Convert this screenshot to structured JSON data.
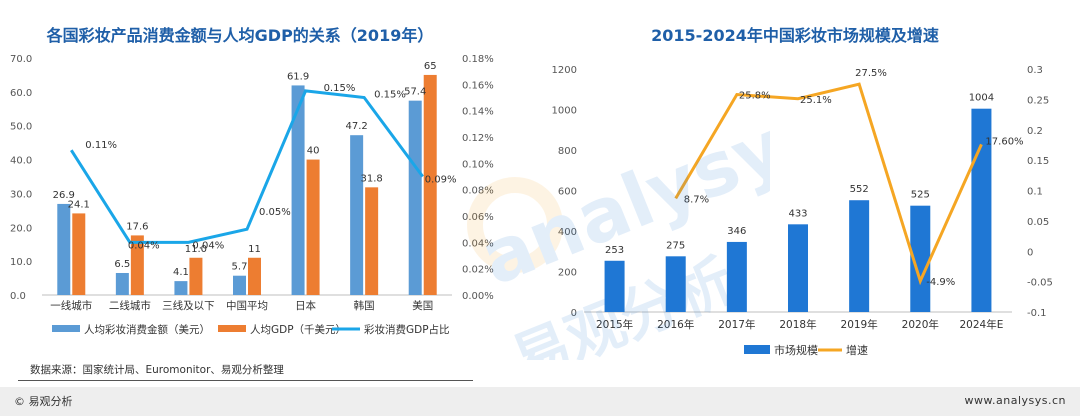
{
  "left_chart": {
    "title": "各国彩妆产品消费金额与人均GDP的关系（2019年）",
    "legend": [
      "人均彩妆消费金额（美元）",
      "人均GDP（千美元）",
      "彩妆消费GDP占比"
    ],
    "y_left_ticks": [
      "0.0",
      "10.0",
      "20.0",
      "30.0",
      "40.0",
      "50.0",
      "60.0",
      "70.0"
    ],
    "y_right_ticks": [
      "0.00%",
      "0.02%",
      "0.04%",
      "0.06%",
      "0.08%",
      "0.10%",
      "0.12%",
      "0.14%",
      "0.16%",
      "0.18%"
    ],
    "bar_labels_1": [
      "26.9",
      "6.5",
      "4.1",
      "5.7",
      "61.9",
      "47.2",
      "57.4"
    ],
    "bar_labels_2": [
      "24.1",
      "17.6",
      "11.0",
      "11",
      "40",
      "31.8",
      "65"
    ],
    "line_labels": [
      "0.11%",
      "0.04%",
      "0.04%",
      "0.05%",
      "0.15%",
      "0.15%",
      "0.09%"
    ]
  },
  "right_chart": {
    "title": "2015-2024年中国彩妆市场规模及增速",
    "legend": [
      "市场规模",
      "增速"
    ],
    "y_left_ticks": [
      "0",
      "200",
      "400",
      "600",
      "800",
      "1000",
      "1200"
    ],
    "y_right_ticks": [
      "-0.1",
      "-0.05",
      "0",
      "0.05",
      "0.1",
      "0.15",
      "0.2",
      "0.25",
      "0.3"
    ],
    "bar_labels": [
      "253",
      "275",
      "346",
      "433",
      "552",
      "525",
      "1004"
    ],
    "line_labels": [
      "",
      "8.7%",
      "25.8%",
      "25.1%",
      "27.5%",
      "-4.9%",
      "17.60%"
    ]
  },
  "chart_data": [
    {
      "type": "bar",
      "title": "各国彩妆产品消费金额与人均GDP的关系（2019年）",
      "categories": [
        "一线城市",
        "二线城市",
        "三线及以下",
        "中国平均",
        "日本",
        "韩国",
        "美国"
      ],
      "series": [
        {
          "name": "人均彩妆消费金额（美元）",
          "type": "bar",
          "axis": "left",
          "values": [
            26.9,
            6.5,
            4.1,
            5.7,
            61.9,
            47.2,
            57.4
          ]
        },
        {
          "name": "人均GDP（千美元）",
          "type": "bar",
          "axis": "left",
          "values": [
            24.1,
            17.6,
            11.0,
            11,
            40,
            31.8,
            65
          ]
        },
        {
          "name": "彩妆消费GDP占比",
          "type": "line",
          "axis": "right",
          "values": [
            0.0011,
            0.0004,
            0.0004,
            0.0005,
            0.00155,
            0.0015,
            0.0009
          ]
        }
      ],
      "ylim": [
        0,
        70
      ],
      "y2lim": [
        0,
        0.0018
      ],
      "grid": false,
      "legend_position": "bottom",
      "colors": {
        "bar1": "#5b9bd5",
        "bar2": "#ed7d31",
        "line": "#1aa6e8"
      }
    },
    {
      "type": "bar",
      "title": "2015-2024年中国彩妆市场规模及增速",
      "categories": [
        "2015年",
        "2016年",
        "2017年",
        "2018年",
        "2019年",
        "2020年",
        "2024年E"
      ],
      "series": [
        {
          "name": "市场规模",
          "type": "bar",
          "axis": "left",
          "values": [
            253,
            275,
            346,
            433,
            552,
            525,
            1004
          ]
        },
        {
          "name": "增速",
          "type": "line",
          "axis": "right",
          "values": [
            null,
            0.087,
            0.258,
            0.251,
            0.275,
            -0.049,
            0.176
          ]
        }
      ],
      "ylim": [
        0,
        1200
      ],
      "y2lim": [
        -0.1,
        0.3
      ],
      "grid": false,
      "legend_position": "bottom",
      "colors": {
        "bar": "#1f77d4",
        "line": "#f5a623"
      }
    }
  ],
  "source": "数据来源：国家统计局、Euromonitor、易观分析整理",
  "footer": {
    "brand": "© 易观分析",
    "site": "www.analysys.cn"
  },
  "watermark": {
    "text_en": "analysys",
    "text_cn": "易观分析"
  }
}
